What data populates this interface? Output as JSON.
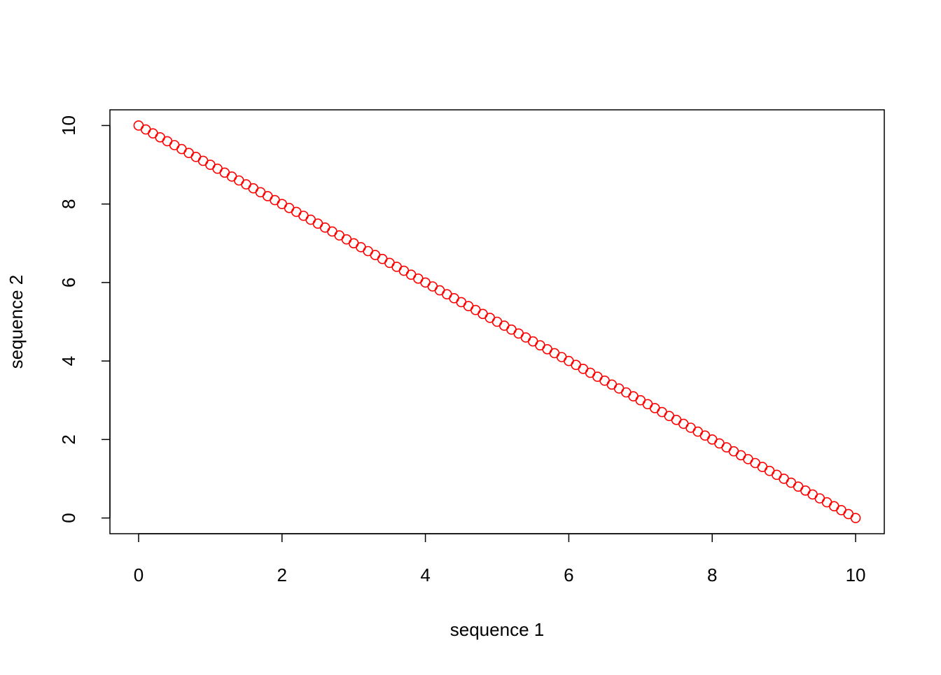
{
  "chart_data": {
    "type": "scatter",
    "xlabel": "sequence 1",
    "ylabel": "sequence 2",
    "color": "#ff0000",
    "xlim": [
      -0.4,
      10.4
    ],
    "ylim": [
      -0.4,
      10.4
    ],
    "xticks": [
      0,
      2,
      4,
      6,
      8,
      10
    ],
    "yticks": [
      0,
      2,
      4,
      6,
      8,
      10
    ],
    "x": [
      0,
      0.1,
      0.2,
      0.3,
      0.4,
      0.5,
      0.6,
      0.7,
      0.8,
      0.9,
      1,
      1.1,
      1.2,
      1.3,
      1.4,
      1.5,
      1.6,
      1.7,
      1.8,
      1.9,
      2,
      2.1,
      2.2,
      2.3,
      2.4,
      2.5,
      2.6,
      2.7,
      2.8,
      2.9,
      3,
      3.1,
      3.2,
      3.3,
      3.4,
      3.5,
      3.6,
      3.7,
      3.8,
      3.9,
      4,
      4.1,
      4.2,
      4.3,
      4.4,
      4.5,
      4.6,
      4.7,
      4.8,
      4.9,
      5,
      5.1,
      5.2,
      5.3,
      5.4,
      5.5,
      5.6,
      5.7,
      5.8,
      5.9,
      6,
      6.1,
      6.2,
      6.3,
      6.4,
      6.5,
      6.6,
      6.7,
      6.8,
      6.9,
      7,
      7.1,
      7.2,
      7.3,
      7.4,
      7.5,
      7.6,
      7.7,
      7.8,
      7.9,
      8,
      8.1,
      8.2,
      8.3,
      8.4,
      8.5,
      8.6,
      8.7,
      8.8,
      8.9,
      9,
      9.1,
      9.2,
      9.3,
      9.4,
      9.5,
      9.6,
      9.7,
      9.8,
      9.9,
      10
    ],
    "values": [
      10,
      9.9,
      9.8,
      9.7,
      9.6,
      9.5,
      9.4,
      9.3,
      9.2,
      9.1,
      9,
      8.9,
      8.8,
      8.7,
      8.6,
      8.5,
      8.4,
      8.3,
      8.2,
      8.1,
      8,
      7.9,
      7.8,
      7.7,
      7.6,
      7.5,
      7.4,
      7.3,
      7.2,
      7.1,
      7,
      6.9,
      6.8,
      6.7,
      6.6,
      6.5,
      6.4,
      6.3,
      6.2,
      6.1,
      6,
      5.9,
      5.8,
      5.7,
      5.6,
      5.5,
      5.4,
      5.3,
      5.2,
      5.1,
      5,
      4.9,
      4.8,
      4.7,
      4.6,
      4.5,
      4.4,
      4.3,
      4.2,
      4.1,
      4,
      3.9,
      3.8,
      3.7,
      3.6,
      3.5,
      3.4,
      3.3,
      3.2,
      3.1,
      3,
      2.9,
      2.8,
      2.7,
      2.6,
      2.5,
      2.4,
      2.3,
      2.2,
      2.1,
      2,
      1.9,
      1.8,
      1.7,
      1.6,
      1.5,
      1.4,
      1.3,
      1.2,
      1.1,
      1,
      0.9,
      0.8,
      0.7,
      0.6,
      0.5,
      0.4,
      0.3,
      0.2,
      0.1,
      0
    ]
  }
}
